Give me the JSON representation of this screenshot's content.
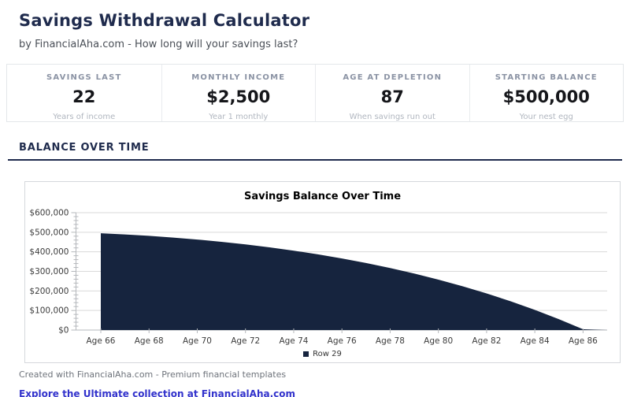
{
  "page": {
    "title": "Savings Withdrawal Calculator",
    "subtitle": "by FinancialAha.com - How long will your savings last?"
  },
  "stats": {
    "cards": [
      {
        "label": "SAVINGS LAST",
        "value": "22",
        "sublabel": "Years of income"
      },
      {
        "label": "MONTHLY INCOME",
        "value": "$2,500",
        "sublabel": "Year 1 monthly"
      },
      {
        "label": "AGE AT DEPLETION",
        "value": "87",
        "sublabel": "When savings run out"
      },
      {
        "label": "STARTING BALANCE",
        "value": "$500,000",
        "sublabel": "Your nest egg"
      }
    ]
  },
  "section": {
    "heading": "BALANCE OVER TIME"
  },
  "chart_data": {
    "type": "area",
    "title": "Savings Balance Over Time",
    "legend": [
      {
        "name": "Row 29",
        "color": "#16243e"
      }
    ],
    "x_ages": [
      66,
      67,
      68,
      69,
      70,
      71,
      72,
      73,
      74,
      75,
      76,
      77,
      78,
      79,
      80,
      81,
      82,
      83,
      84,
      85,
      86,
      87
    ],
    "values": [
      495000,
      488900,
      481500,
      472800,
      462700,
      451000,
      437700,
      422700,
      405800,
      386900,
      365900,
      342700,
      317000,
      288800,
      257900,
      224000,
      187100,
      146800,
      103100,
      55600,
      4200,
      0
    ],
    "x_tick_ages": [
      66,
      68,
      70,
      72,
      74,
      76,
      78,
      80,
      82,
      84,
      86
    ],
    "x_tick_labels": [
      "Age 66",
      "Age 68",
      "Age 70",
      "Age 72",
      "Age 74",
      "Age 76",
      "Age 78",
      "Age 80",
      "Age 82",
      "Age 84",
      "Age 86"
    ],
    "y_ticks": [
      0,
      100000,
      200000,
      300000,
      400000,
      500000,
      600000
    ],
    "y_tick_labels": [
      "$0",
      "$100,000",
      "$200,000",
      "$300,000",
      "$400,000",
      "$500,000",
      "$600,000"
    ],
    "ylim": [
      0,
      600000
    ],
    "y_minor_step": 20000,
    "grid": "horizontal",
    "legend_position": "bottom",
    "fill_color": "#16243e",
    "grid_color": "#d9d9d9",
    "axis_color": "#b5b8bc",
    "tick_label_color": "#3c3c3c"
  },
  "footer": {
    "credit": "Created with FinancialAha.com - Premium financial templates",
    "link": "Explore the Ultimate collection at FinancialAha.com"
  },
  "colors": {
    "accent_navy": "#1f2b4d",
    "area_fill": "#16243e",
    "link_blue": "#3333cc"
  }
}
